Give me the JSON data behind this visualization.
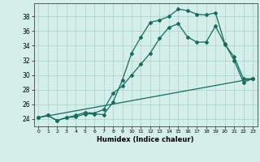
{
  "xlabel": "Humidex (Indice chaleur)",
  "background_color": "#d4eeea",
  "grid_color": "#aed4ce",
  "line_color": "#1a6b5a",
  "xlim": [
    -0.5,
    23.5
  ],
  "ylim": [
    23.0,
    39.8
  ],
  "xticks": [
    0,
    1,
    2,
    3,
    4,
    5,
    6,
    7,
    8,
    9,
    10,
    11,
    12,
    13,
    14,
    15,
    16,
    17,
    18,
    19,
    20,
    21,
    22,
    23
  ],
  "yticks": [
    24,
    26,
    28,
    30,
    32,
    34,
    36,
    38
  ],
  "line1_x": [
    0,
    1,
    2,
    3,
    4,
    5,
    6,
    7,
    8,
    9,
    10,
    11,
    12,
    13,
    14,
    15,
    16,
    17,
    18,
    19,
    20,
    21,
    22,
    23
  ],
  "line1_y": [
    24.2,
    24.5,
    23.8,
    24.2,
    24.3,
    24.7,
    24.7,
    24.6,
    26.3,
    29.3,
    33.0,
    35.2,
    37.2,
    37.5,
    38.0,
    39.0,
    38.8,
    38.3,
    38.2,
    38.5,
    34.3,
    32.0,
    29.0,
    29.5
  ],
  "line2_x": [
    0,
    1,
    2,
    3,
    4,
    5,
    6,
    7,
    8,
    9,
    10,
    11,
    12,
    13,
    14,
    15,
    16,
    17,
    18,
    19,
    20,
    21,
    22,
    23
  ],
  "line2_y": [
    24.2,
    24.5,
    23.8,
    24.2,
    24.5,
    24.9,
    24.8,
    25.3,
    27.5,
    28.5,
    30.0,
    31.5,
    33.0,
    35.0,
    36.5,
    37.0,
    35.2,
    34.5,
    34.5,
    36.7,
    34.2,
    32.5,
    29.5,
    29.5
  ],
  "line3_x": [
    0,
    23
  ],
  "line3_y": [
    24.2,
    29.5
  ]
}
